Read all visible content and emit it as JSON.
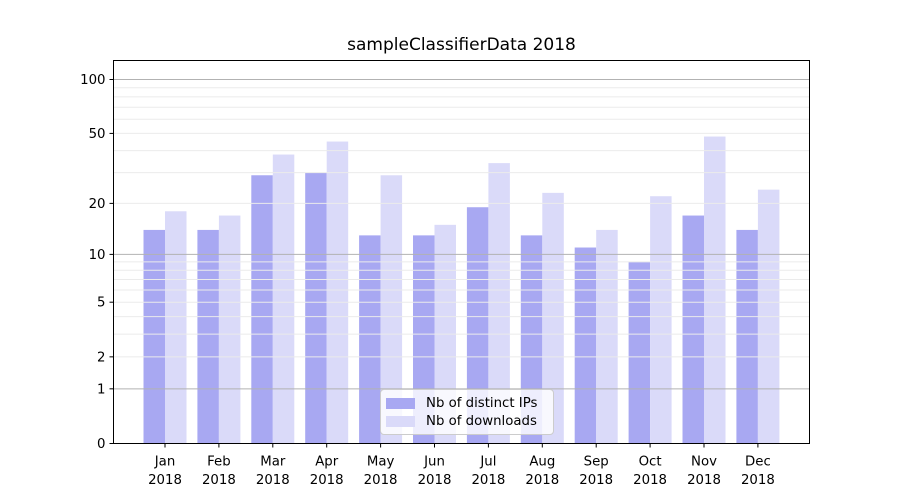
{
  "title": "sampleClassifierData 2018",
  "chart_data": {
    "type": "bar",
    "title": "sampleClassifierData 2018",
    "categories": [
      "Jan",
      "Feb",
      "Mar",
      "Apr",
      "May",
      "Jun",
      "Jul",
      "Aug",
      "Sep",
      "Oct",
      "Nov",
      "Dec"
    ],
    "category_sublabel": "2018",
    "series": [
      {
        "name": "Nb of distinct IPs",
        "color": "#a8a8f2",
        "values": [
          14,
          14,
          29,
          30,
          13,
          13,
          19,
          13,
          11,
          9,
          17,
          14
        ]
      },
      {
        "name": "Nb of downloads",
        "color": "#dadaf9",
        "values": [
          18,
          17,
          38,
          45,
          29,
          15,
          34,
          23,
          14,
          22,
          48,
          24
        ]
      }
    ],
    "yscale": "log1p",
    "ylim": [
      0,
      128
    ],
    "ytick_values": [
      0,
      1,
      2,
      5,
      10,
      20,
      50,
      100
    ],
    "ytick_labels": [
      "0",
      "1",
      "2",
      "5",
      "10",
      "20",
      "50",
      "100"
    ],
    "grid_major_values": [
      1,
      10,
      100
    ],
    "grid_minor_values": [
      2,
      3,
      4,
      5,
      6,
      7,
      8,
      9,
      20,
      30,
      40,
      50,
      60,
      70,
      80,
      90
    ],
    "grid": true,
    "legend_position": "lower center",
    "xlabel": "",
    "ylabel": ""
  },
  "colors": {
    "background": "#ffffff",
    "bar_distinct_ips": "#a8a8f2",
    "bar_downloads": "#dadaf9",
    "grid_major": "#b2b2b2",
    "grid_minor": "#ebebeb",
    "axis": "#000000",
    "text": "#000000",
    "legend_border": "#cccccc",
    "legend_background": "rgba(255,255,255,0.8)"
  },
  "legend": {
    "items": [
      {
        "label": "Nb of distinct IPs",
        "swatch_color": "#a8a8f2"
      },
      {
        "label": "Nb of downloads",
        "swatch_color": "#dadaf9"
      }
    ]
  }
}
